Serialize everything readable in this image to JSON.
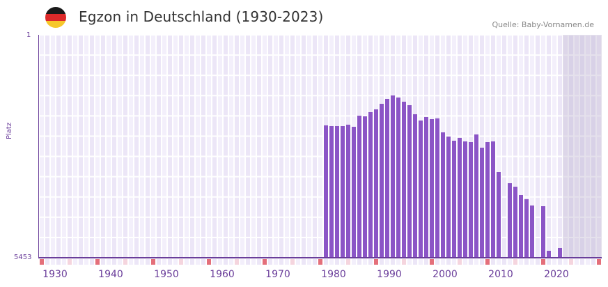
{
  "header": {
    "title": "Egzon in Deutschland (1930-2023)",
    "source": "Quelle: Baby-Vornamen.de",
    "flag_colors": [
      "#1a1a1a",
      "#dd2a2a",
      "#f6c72b"
    ]
  },
  "colors": {
    "bar": "#8b55c6",
    "grid_a": "#f3effb",
    "grid_b": "#ece6f7",
    "axis": "#6a3d9a",
    "marker_strong": "#e46f7a",
    "marker_light": "#f5d5de"
  },
  "chart_data": {
    "type": "bar",
    "title": "Egzon in Deutschland (1930-2023)",
    "xlabel": "",
    "ylabel": "Platz",
    "y_inverted": true,
    "ylim": [
      5453,
      1
    ],
    "y_ticks": [
      "1",
      "5453"
    ],
    "x_ticks": [
      "1930",
      "1940",
      "1950",
      "1960",
      "1970",
      "1980",
      "1990",
      "2000",
      "2010",
      "2020"
    ],
    "x_range": [
      1929,
      2029
    ],
    "shaded_future_from": 2023,
    "grid": true,
    "categories": [
      1980,
      1981,
      1982,
      1983,
      1984,
      1985,
      1986,
      1987,
      1988,
      1989,
      1990,
      1991,
      1992,
      1993,
      1994,
      1995,
      1996,
      1997,
      1998,
      1999,
      2000,
      2001,
      2002,
      2003,
      2004,
      2005,
      2006,
      2007,
      2008,
      2009,
      2010,
      2011,
      2013,
      2014,
      2015,
      2016,
      2017,
      2019,
      2020,
      2022
    ],
    "values": [
      2214,
      2231,
      2231,
      2231,
      2197,
      2248,
      1976,
      1993,
      1891,
      1822,
      1686,
      1567,
      1482,
      1533,
      1635,
      1720,
      1942,
      2095,
      2010,
      2061,
      2044,
      2384,
      2487,
      2589,
      2521,
      2606,
      2623,
      2436,
      2759,
      2623,
      2606,
      3355,
      3628,
      3713,
      3917,
      4019,
      4173,
      4190,
      5283,
      5215
    ]
  }
}
